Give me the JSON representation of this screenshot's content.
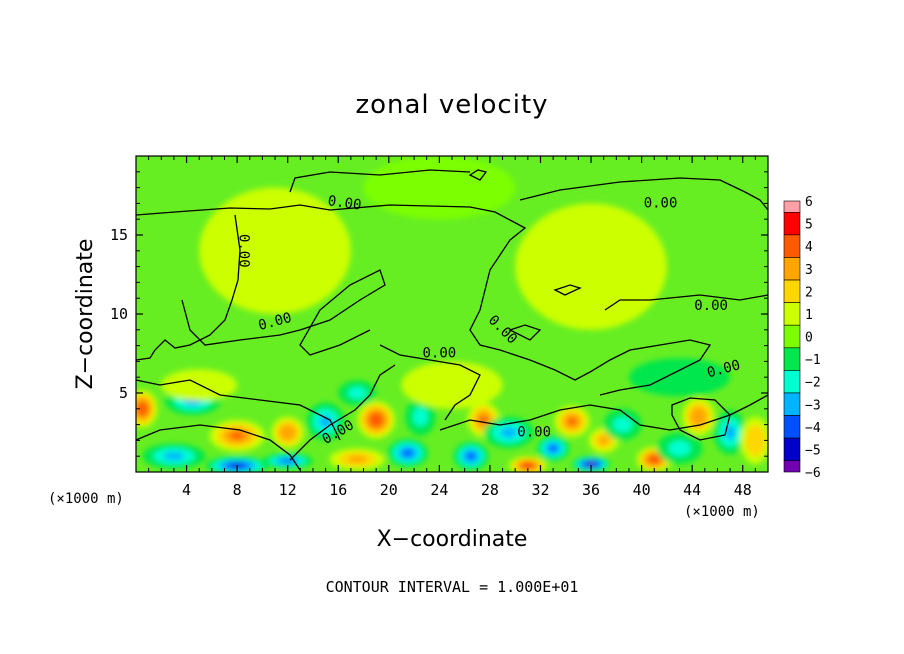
{
  "chart_data": {
    "type": "heatmap",
    "title": "zonal velocity",
    "xlabel": "X−coordinate",
    "ylabel": "Z−coordinate",
    "x_unit_left": "(×1000 m)",
    "x_unit_right": "(×1000 m)",
    "footer": "CONTOUR INTERVAL = 1.000E+01",
    "x_range": [
      0,
      50
    ],
    "y_range": [
      0,
      20
    ],
    "x_ticks": [
      4,
      8,
      12,
      16,
      20,
      24,
      28,
      32,
      36,
      40,
      44,
      48
    ],
    "x_tick_labels": [
      "4",
      "8",
      "12",
      "16",
      "20",
      "24",
      "28",
      "32",
      "36",
      "40",
      "44",
      "48"
    ],
    "y_ticks": [
      5,
      10,
      15
    ],
    "y_tick_labels": [
      "5",
      "10",
      "15"
    ],
    "colorbar": {
      "min": -6,
      "max": 6,
      "ticks": [
        6,
        5,
        4,
        3,
        2,
        1,
        0,
        -1,
        -2,
        -3,
        -4,
        -5,
        -6
      ],
      "labels": [
        "6",
        "5",
        "4",
        "3",
        "2",
        "1",
        "0",
        "−1",
        "−2",
        "−3",
        "−4",
        "−5",
        "−6"
      ],
      "colors": [
        "#ff9fa8",
        "#ff0000",
        "#ff5a00",
        "#ffa500",
        "#ffd700",
        "#ccff00",
        "#7cff00",
        "#00e64d",
        "#00ffd0",
        "#00b4ff",
        "#0050ff",
        "#0000c8",
        "#7000b0"
      ]
    },
    "contour_labels": [
      {
        "text": "0.00",
        "x": 8.5,
        "y": 14.0,
        "rot": 90
      },
      {
        "text": "0.00",
        "x": 16.5,
        "y": 17.0,
        "rot": 8
      },
      {
        "text": "0.00",
        "x": 41.5,
        "y": 17.0,
        "rot": 0
      },
      {
        "text": "0.00",
        "x": 11.0,
        "y": 9.5,
        "rot": -15
      },
      {
        "text": "0.00",
        "x": 24.0,
        "y": 7.5,
        "rot": 0
      },
      {
        "text": "0.00",
        "x": 29.0,
        "y": 9.0,
        "rot": 45
      },
      {
        "text": "0.00",
        "x": 45.5,
        "y": 10.5,
        "rot": 0
      },
      {
        "text": "0.00",
        "x": 46.5,
        "y": 6.5,
        "rot": -15
      },
      {
        "text": "0.00",
        "x": 16.0,
        "y": 2.5,
        "rot": -30
      },
      {
        "text": "0.00",
        "x": 31.5,
        "y": 2.5,
        "rot": 0
      }
    ],
    "blobs": [
      {
        "x": 0.5,
        "y": 4.0,
        "rx": 1.2,
        "ry": 1.2,
        "v": 4.5
      },
      {
        "x": 4.5,
        "y": 4.5,
        "rx": 2.2,
        "ry": 0.9,
        "v": -2.5
      },
      {
        "x": 8.0,
        "y": 2.3,
        "rx": 2.2,
        "ry": 1.0,
        "v": 4.0
      },
      {
        "x": 8.0,
        "y": 0.4,
        "rx": 2.5,
        "ry": 0.6,
        "v": -4.5
      },
      {
        "x": 3.0,
        "y": 1.0,
        "rx": 2.5,
        "ry": 0.8,
        "v": -3.0
      },
      {
        "x": 12.0,
        "y": 2.5,
        "rx": 1.3,
        "ry": 1.0,
        "v": 3.5
      },
      {
        "x": 12.0,
        "y": 0.7,
        "rx": 2.0,
        "ry": 0.5,
        "v": -4.0
      },
      {
        "x": 15.0,
        "y": 3.2,
        "rx": 1.5,
        "ry": 1.2,
        "v": -2.5
      },
      {
        "x": 19.0,
        "y": 3.3,
        "rx": 1.5,
        "ry": 1.2,
        "v": 4.5
      },
      {
        "x": 17.5,
        "y": 0.8,
        "rx": 2.2,
        "ry": 0.7,
        "v": 3.0
      },
      {
        "x": 21.5,
        "y": 1.2,
        "rx": 1.6,
        "ry": 0.9,
        "v": -4.0
      },
      {
        "x": 22.5,
        "y": 3.5,
        "rx": 1.2,
        "ry": 1.2,
        "v": -2.0
      },
      {
        "x": 26.5,
        "y": 1.0,
        "rx": 1.4,
        "ry": 0.9,
        "v": -4.0
      },
      {
        "x": 27.5,
        "y": 3.3,
        "rx": 1.3,
        "ry": 1.1,
        "v": 4.0
      },
      {
        "x": 29.5,
        "y": 2.5,
        "rx": 2.0,
        "ry": 1.0,
        "v": -3.0
      },
      {
        "x": 31.0,
        "y": 0.4,
        "rx": 1.5,
        "ry": 0.6,
        "v": 5.0
      },
      {
        "x": 33.0,
        "y": 1.5,
        "rx": 1.3,
        "ry": 0.8,
        "v": -4.0
      },
      {
        "x": 34.5,
        "y": 3.2,
        "rx": 1.4,
        "ry": 1.0,
        "v": 4.0
      },
      {
        "x": 36.0,
        "y": 0.5,
        "rx": 1.5,
        "ry": 0.5,
        "v": -5.5
      },
      {
        "x": 37.0,
        "y": 2.0,
        "rx": 1.2,
        "ry": 0.8,
        "v": 3.0
      },
      {
        "x": 38.5,
        "y": 3.0,
        "rx": 1.5,
        "ry": 1.0,
        "v": -2.0
      },
      {
        "x": 41.0,
        "y": 0.8,
        "rx": 1.4,
        "ry": 0.8,
        "v": 4.5
      },
      {
        "x": 43.0,
        "y": 1.5,
        "rx": 1.8,
        "ry": 1.0,
        "v": -2.0
      },
      {
        "x": 44.5,
        "y": 3.5,
        "rx": 1.3,
        "ry": 1.2,
        "v": 3.5
      },
      {
        "x": 47.0,
        "y": 2.5,
        "rx": 1.3,
        "ry": 1.4,
        "v": -3.0
      },
      {
        "x": 49.0,
        "y": 2.0,
        "rx": 1.2,
        "ry": 1.5,
        "v": 2.5
      },
      {
        "x": 17.5,
        "y": 5.0,
        "rx": 1.5,
        "ry": 0.8,
        "v": -1.5
      },
      {
        "x": 5.0,
        "y": 5.5,
        "rx": 3.0,
        "ry": 1.0,
        "v": 1.5
      },
      {
        "x": 25.0,
        "y": 5.5,
        "rx": 4.0,
        "ry": 1.5,
        "v": 1.2
      },
      {
        "x": 43.0,
        "y": 6.0,
        "rx": 4.0,
        "ry": 1.2,
        "v": -0.5
      },
      {
        "x": 11.0,
        "y": 14.0,
        "rx": 6.0,
        "ry": 4.0,
        "v": 0.8
      },
      {
        "x": 36.0,
        "y": 13.0,
        "rx": 6.0,
        "ry": 4.0,
        "v": 0.6
      },
      {
        "x": 24.0,
        "y": 18.0,
        "rx": 6.0,
        "ry": 2.0,
        "v": 0.3
      }
    ]
  }
}
